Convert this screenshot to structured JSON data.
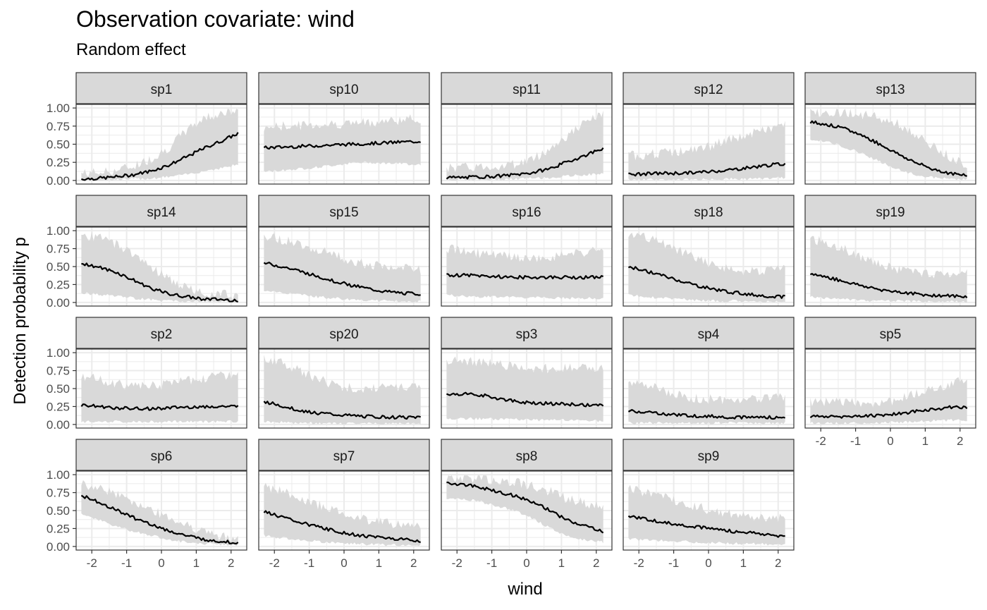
{
  "chart_data": {
    "type": "line",
    "title": "Observation covariate: wind",
    "subtitle": "Random effect",
    "xlabel": "wind",
    "ylabel": "Detection probability p",
    "xlim": [
      -2.45,
      2.45
    ],
    "ylim": [
      -0.05,
      1.05
    ],
    "x_ticks": [
      -2,
      -1,
      0,
      1,
      2
    ],
    "x_tick_labels": [
      "-2",
      "-1",
      "0",
      "1",
      "2"
    ],
    "y_ticks": [
      0,
      0.25,
      0.5,
      0.75,
      1
    ],
    "y_tick_labels": [
      "0.00",
      "0.25",
      "0.50",
      "0.75",
      "1.00"
    ],
    "grid": true,
    "x_domain": [
      -2.3,
      2.2
    ],
    "series": [
      {
        "name": "sp1",
        "x": [
          -2.3,
          -1.8,
          -1.3,
          -0.8,
          -0.3,
          0.2,
          0.7,
          1.2,
          1.7,
          2.2
        ],
        "mean": [
          0.02,
          0.03,
          0.05,
          0.08,
          0.13,
          0.21,
          0.32,
          0.44,
          0.54,
          0.65
        ],
        "lower": [
          0.01,
          0.01,
          0.01,
          0.02,
          0.03,
          0.05,
          0.08,
          0.13,
          0.17,
          0.22
        ],
        "upper": [
          0.1,
          0.11,
          0.14,
          0.2,
          0.3,
          0.45,
          0.68,
          0.86,
          0.93,
          0.95
        ]
      },
      {
        "name": "sp10",
        "x": [
          -2.3,
          -1.8,
          -1.3,
          -0.8,
          -0.3,
          0.2,
          0.7,
          1.2,
          1.7,
          2.2
        ],
        "mean": [
          0.45,
          0.46,
          0.47,
          0.48,
          0.49,
          0.5,
          0.51,
          0.52,
          0.53,
          0.54
        ],
        "lower": [
          0.12,
          0.14,
          0.16,
          0.18,
          0.21,
          0.24,
          0.25,
          0.24,
          0.23,
          0.22
        ],
        "upper": [
          0.73,
          0.75,
          0.76,
          0.77,
          0.78,
          0.79,
          0.8,
          0.82,
          0.84,
          0.85
        ]
      },
      {
        "name": "sp11",
        "x": [
          -2.3,
          -1.8,
          -1.3,
          -0.8,
          -0.3,
          0.2,
          0.7,
          1.2,
          1.7,
          2.2
        ],
        "mean": [
          0.04,
          0.04,
          0.05,
          0.06,
          0.08,
          0.11,
          0.17,
          0.26,
          0.35,
          0.45
        ],
        "lower": [
          0.01,
          0.01,
          0.01,
          0.01,
          0.02,
          0.03,
          0.04,
          0.06,
          0.08,
          0.09
        ],
        "upper": [
          0.17,
          0.18,
          0.19,
          0.2,
          0.23,
          0.3,
          0.45,
          0.63,
          0.8,
          0.92
        ]
      },
      {
        "name": "sp12",
        "x": [
          -2.3,
          -1.8,
          -1.3,
          -0.8,
          -0.3,
          0.2,
          0.7,
          1.2,
          1.7,
          2.2
        ],
        "mean": [
          0.08,
          0.09,
          0.1,
          0.1,
          0.11,
          0.13,
          0.15,
          0.18,
          0.21,
          0.23
        ],
        "lower": [
          0.01,
          0.01,
          0.01,
          0.01,
          0.01,
          0.02,
          0.02,
          0.02,
          0.03,
          0.04
        ],
        "upper": [
          0.34,
          0.36,
          0.38,
          0.4,
          0.43,
          0.5,
          0.57,
          0.64,
          0.71,
          0.77
        ]
      },
      {
        "name": "sp13",
        "x": [
          -2.3,
          -1.8,
          -1.3,
          -0.8,
          -0.3,
          0.2,
          0.7,
          1.2,
          1.7,
          2.2
        ],
        "mean": [
          0.81,
          0.77,
          0.71,
          0.62,
          0.5,
          0.37,
          0.25,
          0.16,
          0.1,
          0.06
        ],
        "lower": [
          0.57,
          0.53,
          0.46,
          0.37,
          0.26,
          0.15,
          0.08,
          0.04,
          0.02,
          0.02
        ],
        "upper": [
          0.95,
          0.95,
          0.94,
          0.91,
          0.86,
          0.78,
          0.64,
          0.47,
          0.33,
          0.22
        ]
      },
      {
        "name": "sp14",
        "x": [
          -2.3,
          -1.8,
          -1.3,
          -0.8,
          -0.3,
          0.2,
          0.7,
          1.2,
          1.7,
          2.2
        ],
        "mean": [
          0.55,
          0.49,
          0.42,
          0.31,
          0.2,
          0.12,
          0.08,
          0.05,
          0.04,
          0.03
        ],
        "lower": [
          0.13,
          0.11,
          0.09,
          0.06,
          0.04,
          0.02,
          0.01,
          0.01,
          0.01,
          0.01
        ],
        "upper": [
          0.95,
          0.9,
          0.82,
          0.68,
          0.5,
          0.33,
          0.2,
          0.14,
          0.12,
          0.1
        ]
      },
      {
        "name": "sp15",
        "x": [
          -2.3,
          -1.8,
          -1.3,
          -0.8,
          -0.3,
          0.2,
          0.7,
          1.2,
          1.7,
          2.2
        ],
        "mean": [
          0.55,
          0.5,
          0.44,
          0.37,
          0.3,
          0.24,
          0.19,
          0.15,
          0.13,
          0.12
        ],
        "lower": [
          0.16,
          0.14,
          0.11,
          0.08,
          0.06,
          0.04,
          0.03,
          0.02,
          0.02,
          0.01
        ],
        "upper": [
          0.93,
          0.88,
          0.82,
          0.75,
          0.66,
          0.59,
          0.53,
          0.49,
          0.47,
          0.46
        ]
      },
      {
        "name": "sp16",
        "x": [
          -2.3,
          -1.8,
          -1.3,
          -0.8,
          -0.3,
          0.2,
          0.7,
          1.2,
          1.7,
          2.2
        ],
        "mean": [
          0.38,
          0.38,
          0.37,
          0.36,
          0.35,
          0.35,
          0.35,
          0.35,
          0.35,
          0.35
        ],
        "lower": [
          0.1,
          0.09,
          0.08,
          0.08,
          0.07,
          0.07,
          0.06,
          0.06,
          0.06,
          0.06
        ],
        "upper": [
          0.75,
          0.72,
          0.68,
          0.65,
          0.62,
          0.61,
          0.63,
          0.66,
          0.7,
          0.73
        ]
      },
      {
        "name": "sp18",
        "x": [
          -2.3,
          -1.8,
          -1.3,
          -0.8,
          -0.3,
          0.2,
          0.7,
          1.2,
          1.7,
          2.2
        ],
        "mean": [
          0.5,
          0.44,
          0.37,
          0.3,
          0.23,
          0.18,
          0.14,
          0.11,
          0.09,
          0.08
        ],
        "lower": [
          0.1,
          0.08,
          0.06,
          0.05,
          0.03,
          0.02,
          0.02,
          0.01,
          0.01,
          0.01
        ],
        "upper": [
          0.94,
          0.9,
          0.82,
          0.72,
          0.6,
          0.52,
          0.46,
          0.44,
          0.45,
          0.47
        ]
      },
      {
        "name": "sp19",
        "x": [
          -2.3,
          -1.8,
          -1.3,
          -0.8,
          -0.3,
          0.2,
          0.7,
          1.2,
          1.7,
          2.2
        ],
        "mean": [
          0.4,
          0.35,
          0.29,
          0.23,
          0.18,
          0.15,
          0.12,
          0.1,
          0.09,
          0.08
        ],
        "lower": [
          0.08,
          0.06,
          0.05,
          0.03,
          0.02,
          0.02,
          0.01,
          0.01,
          0.01,
          0.01
        ],
        "upper": [
          0.88,
          0.83,
          0.74,
          0.62,
          0.52,
          0.46,
          0.42,
          0.4,
          0.4,
          0.41
        ]
      },
      {
        "name": "sp2",
        "x": [
          -2.3,
          -1.8,
          -1.3,
          -0.8,
          -0.3,
          0.2,
          0.7,
          1.2,
          1.7,
          2.2
        ],
        "mean": [
          0.27,
          0.25,
          0.23,
          0.22,
          0.22,
          0.23,
          0.24,
          0.25,
          0.25,
          0.25
        ],
        "lower": [
          0.04,
          0.04,
          0.04,
          0.04,
          0.04,
          0.04,
          0.04,
          0.04,
          0.04,
          0.04
        ],
        "upper": [
          0.68,
          0.63,
          0.57,
          0.54,
          0.53,
          0.56,
          0.61,
          0.65,
          0.68,
          0.7
        ]
      },
      {
        "name": "sp20",
        "x": [
          -2.3,
          -1.8,
          -1.3,
          -0.8,
          -0.3,
          0.2,
          0.7,
          1.2,
          1.7,
          2.2
        ],
        "mean": [
          0.32,
          0.26,
          0.2,
          0.16,
          0.14,
          0.12,
          0.11,
          0.1,
          0.1,
          0.1
        ],
        "lower": [
          0.04,
          0.03,
          0.02,
          0.02,
          0.01,
          0.01,
          0.01,
          0.01,
          0.01,
          0.01
        ],
        "upper": [
          0.92,
          0.86,
          0.75,
          0.64,
          0.56,
          0.51,
          0.5,
          0.51,
          0.53,
          0.55
        ]
      },
      {
        "name": "sp3",
        "x": [
          -2.3,
          -1.8,
          -1.3,
          -0.8,
          -0.3,
          0.2,
          0.7,
          1.2,
          1.7,
          2.2
        ],
        "mean": [
          0.42,
          0.43,
          0.41,
          0.36,
          0.32,
          0.3,
          0.29,
          0.28,
          0.27,
          0.26
        ],
        "lower": [
          0.08,
          0.08,
          0.08,
          0.07,
          0.07,
          0.06,
          0.06,
          0.06,
          0.05,
          0.05
        ],
        "upper": [
          0.89,
          0.89,
          0.87,
          0.84,
          0.81,
          0.79,
          0.78,
          0.78,
          0.78,
          0.79
        ]
      },
      {
        "name": "sp4",
        "x": [
          -2.3,
          -1.8,
          -1.3,
          -0.8,
          -0.3,
          0.2,
          0.7,
          1.2,
          1.7,
          2.2
        ],
        "mean": [
          0.19,
          0.17,
          0.15,
          0.13,
          0.12,
          0.11,
          0.1,
          0.1,
          0.1,
          0.1
        ],
        "lower": [
          0.02,
          0.02,
          0.02,
          0.02,
          0.02,
          0.02,
          0.02,
          0.02,
          0.02,
          0.02
        ],
        "upper": [
          0.62,
          0.55,
          0.47,
          0.4,
          0.36,
          0.35,
          0.35,
          0.36,
          0.37,
          0.38
        ]
      },
      {
        "name": "sp5",
        "x": [
          -2.3,
          -1.8,
          -1.3,
          -0.8,
          -0.3,
          0.2,
          0.7,
          1.2,
          1.7,
          2.2
        ],
        "mean": [
          0.11,
          0.11,
          0.11,
          0.12,
          0.13,
          0.15,
          0.18,
          0.21,
          0.24,
          0.24
        ],
        "lower": [
          0.02,
          0.02,
          0.02,
          0.02,
          0.02,
          0.03,
          0.04,
          0.05,
          0.06,
          0.06
        ],
        "upper": [
          0.32,
          0.31,
          0.3,
          0.3,
          0.3,
          0.34,
          0.42,
          0.5,
          0.57,
          0.61
        ]
      },
      {
        "name": "sp6",
        "x": [
          -2.3,
          -1.8,
          -1.3,
          -0.8,
          -0.3,
          0.2,
          0.7,
          1.2,
          1.7,
          2.2
        ],
        "mean": [
          0.71,
          0.62,
          0.51,
          0.4,
          0.31,
          0.22,
          0.15,
          0.1,
          0.07,
          0.05
        ],
        "lower": [
          0.45,
          0.37,
          0.28,
          0.21,
          0.15,
          0.1,
          0.06,
          0.04,
          0.03,
          0.02
        ],
        "upper": [
          0.88,
          0.82,
          0.74,
          0.63,
          0.52,
          0.4,
          0.29,
          0.2,
          0.14,
          0.1
        ]
      },
      {
        "name": "sp7",
        "x": [
          -2.3,
          -1.8,
          -1.3,
          -0.8,
          -0.3,
          0.2,
          0.7,
          1.2,
          1.7,
          2.2
        ],
        "mean": [
          0.49,
          0.41,
          0.34,
          0.28,
          0.22,
          0.17,
          0.14,
          0.12,
          0.1,
          0.08
        ],
        "lower": [
          0.15,
          0.12,
          0.09,
          0.07,
          0.05,
          0.04,
          0.03,
          0.02,
          0.02,
          0.02
        ],
        "upper": [
          0.85,
          0.77,
          0.68,
          0.59,
          0.5,
          0.42,
          0.37,
          0.33,
          0.3,
          0.28
        ]
      },
      {
        "name": "sp8",
        "x": [
          -2.3,
          -1.8,
          -1.3,
          -0.8,
          -0.3,
          0.2,
          0.7,
          1.2,
          1.7,
          2.2
        ],
        "mean": [
          0.88,
          0.86,
          0.82,
          0.76,
          0.7,
          0.62,
          0.49,
          0.36,
          0.28,
          0.21
        ],
        "lower": [
          0.68,
          0.66,
          0.62,
          0.56,
          0.49,
          0.38,
          0.25,
          0.14,
          0.09,
          0.06
        ],
        "upper": [
          0.96,
          0.96,
          0.94,
          0.92,
          0.89,
          0.84,
          0.76,
          0.66,
          0.6,
          0.54
        ]
      },
      {
        "name": "sp9",
        "x": [
          -2.3,
          -1.8,
          -1.3,
          -0.8,
          -0.3,
          0.2,
          0.7,
          1.2,
          1.7,
          2.2
        ],
        "mean": [
          0.42,
          0.38,
          0.34,
          0.3,
          0.27,
          0.24,
          0.21,
          0.19,
          0.16,
          0.14
        ],
        "lower": [
          0.11,
          0.09,
          0.08,
          0.07,
          0.06,
          0.05,
          0.04,
          0.04,
          0.03,
          0.03
        ],
        "upper": [
          0.82,
          0.75,
          0.68,
          0.61,
          0.55,
          0.49,
          0.45,
          0.42,
          0.41,
          0.4
        ]
      }
    ]
  }
}
